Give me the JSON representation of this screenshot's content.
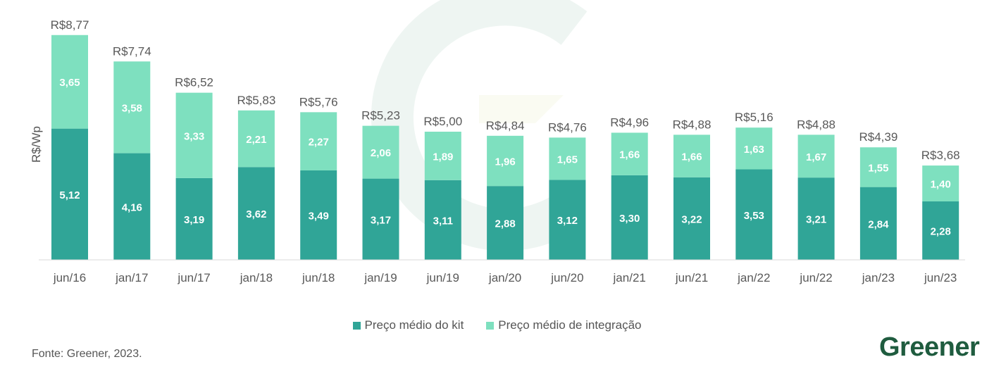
{
  "chart_data": {
    "type": "bar",
    "stacked": true,
    "ylabel": "R$/Wp",
    "categories": [
      "jun/16",
      "jan/17",
      "jun/17",
      "jan/18",
      "jun/18",
      "jan/19",
      "jun/19",
      "jan/20",
      "jun/20",
      "jan/21",
      "jun/21",
      "jan/22",
      "jun/22",
      "jan/23",
      "jun/23"
    ],
    "series": [
      {
        "name": "Preço médio do kit",
        "color": "#30a597",
        "values": [
          5.12,
          4.16,
          3.19,
          3.62,
          3.49,
          3.17,
          3.11,
          2.88,
          3.12,
          3.3,
          3.22,
          3.53,
          3.21,
          2.84,
          2.28
        ],
        "labels": [
          "5,12",
          "4,16",
          "3,19",
          "3,62",
          "3,49",
          "3,17",
          "3,11",
          "2,88",
          "3,12",
          "3,30",
          "3,22",
          "3,53",
          "3,21",
          "2,84",
          "2,28"
        ]
      },
      {
        "name": "Preço médio de integração",
        "color": "#7ee0bf",
        "values": [
          3.65,
          3.58,
          3.33,
          2.21,
          2.27,
          2.06,
          1.89,
          1.96,
          1.65,
          1.66,
          1.66,
          1.63,
          1.67,
          1.55,
          1.4
        ],
        "labels": [
          "3,65",
          "3,58",
          "3,33",
          "2,21",
          "2,27",
          "2,06",
          "1,89",
          "1,96",
          "1,65",
          "1,66",
          "1,66",
          "1,63",
          "1,67",
          "1,55",
          "1,40"
        ]
      }
    ],
    "totals": [
      "R$8,77",
      "R$7,74",
      "R$6,52",
      "R$5,83",
      "R$5,76",
      "R$5,23",
      "R$5,00",
      "R$4,84",
      "R$4,76",
      "R$4,96",
      "R$4,88",
      "R$5,16",
      "R$4,88",
      "R$4,39",
      "R$3,68"
    ],
    "legend_position": "bottom-center",
    "grid": false
  },
  "legend": {
    "kit_label": "Preço médio do kit",
    "integration_label": "Preço médio de integração"
  },
  "source": "Fonte: Greener, 2023.",
  "logo_text": "Greener"
}
